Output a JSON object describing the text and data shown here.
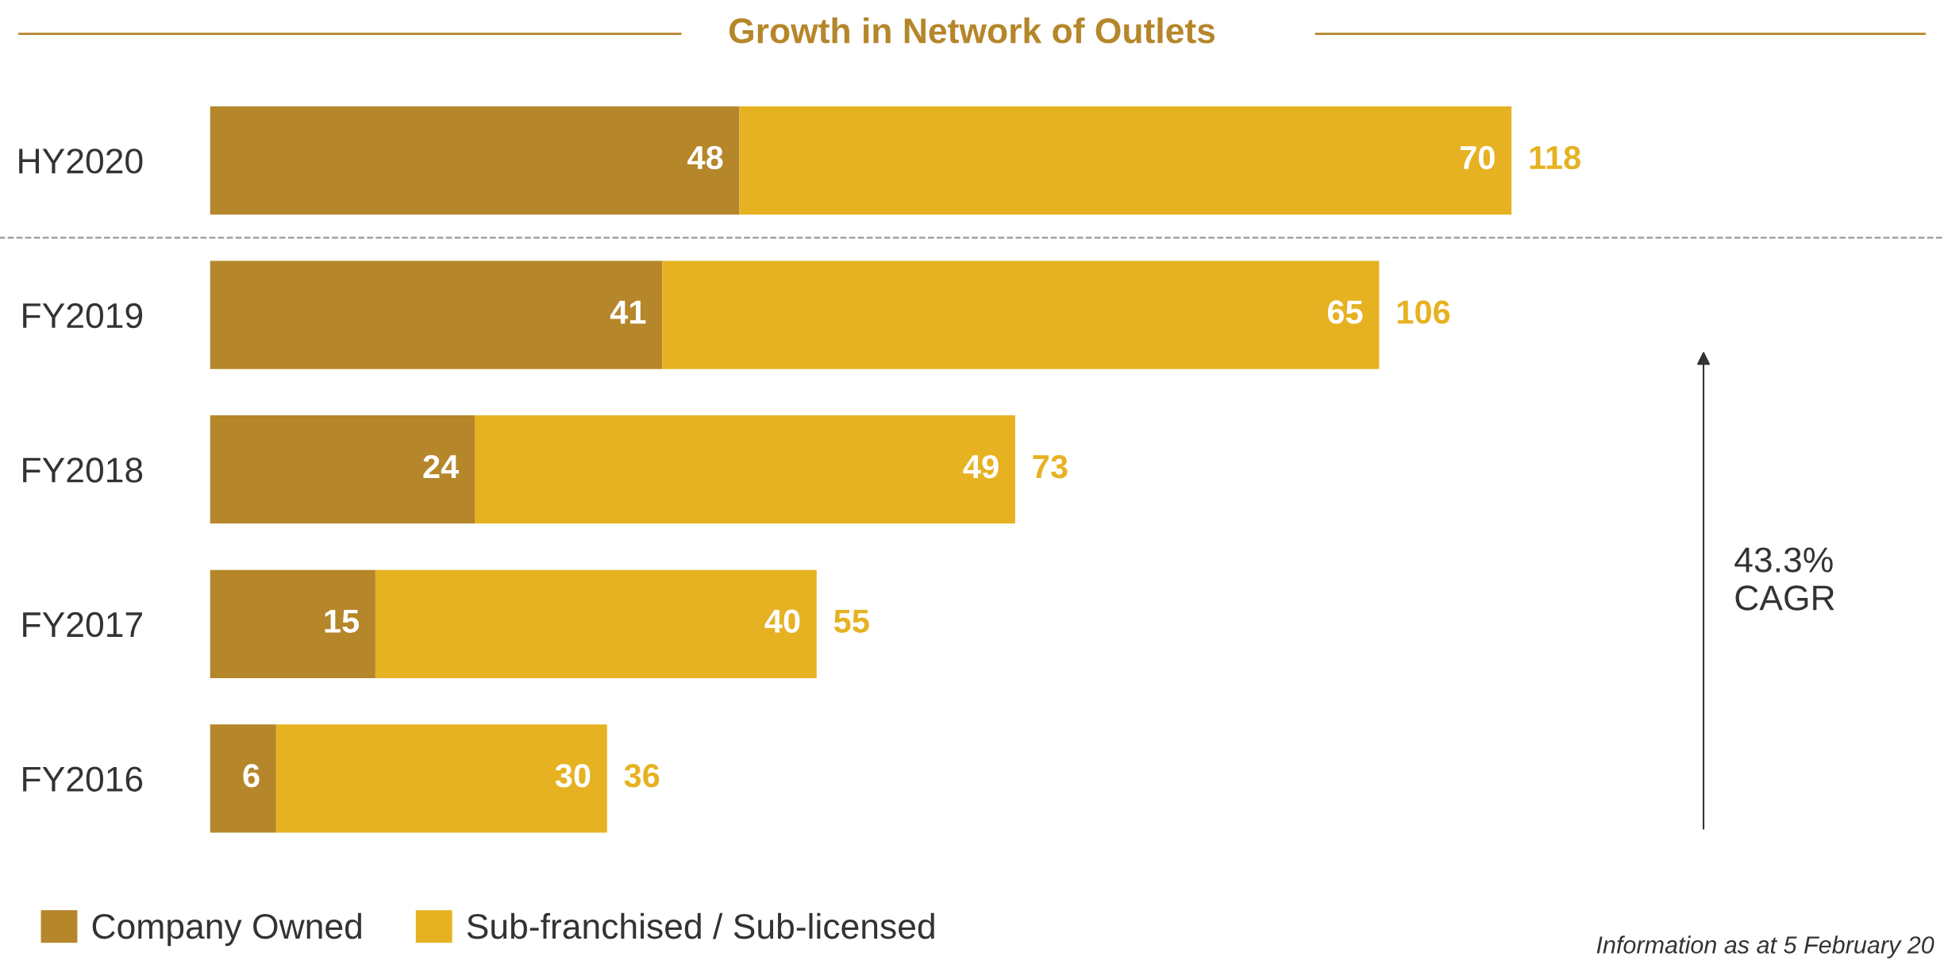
{
  "chart_data": {
    "type": "bar",
    "orientation": "horizontal",
    "stacked": true,
    "title": "Growth in Network of Outlets",
    "categories": [
      "HY2020",
      "FY2019",
      "FY2018",
      "FY2017",
      "FY2016"
    ],
    "series": [
      {
        "name": "Company Owned",
        "color": "#b5862a",
        "values": [
          48,
          41,
          24,
          15,
          6
        ]
      },
      {
        "name": "Sub-franchised / Sub-licensed",
        "color": "#e6b222",
        "values": [
          70,
          65,
          49,
          40,
          30
        ]
      }
    ],
    "data_labels": true,
    "totals": [
      "118",
      "106",
      "73",
      "55",
      "36"
    ],
    "annotations": [
      "43.3%\nCAGR",
      "Information as at 5 February 20"
    ],
    "legend": "bottom",
    "tick_labels": "y",
    "grid": false
  }
}
